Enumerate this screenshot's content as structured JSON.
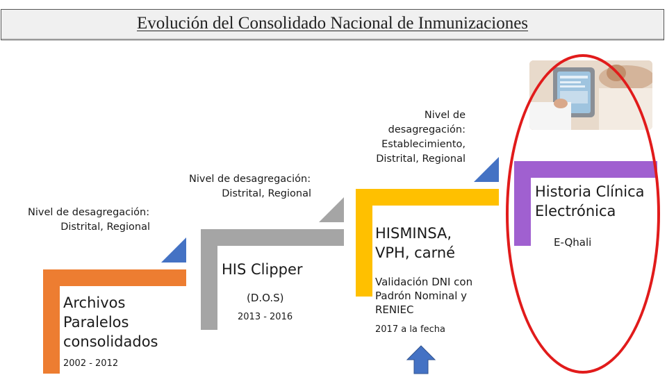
{
  "title": "Evolución del Consolidado Nacional de Inmunizaciones",
  "colors": {
    "orange": "#ed7d31",
    "gray": "#a5a5a5",
    "yellow": "#ffc000",
    "purple": "#a060d0",
    "blue_arrow": "#4472c4",
    "red_oval": "#e11b1b"
  },
  "labels": {
    "level1_line1": "Nivel de desagregación:",
    "level1_line2": "Distrital, Regional",
    "level2_line1": "Nivel de desagregación:",
    "level2_line2": "Distrital, Regional",
    "level3_line1": "Nivel de",
    "level3_line2": "desagregación:",
    "level3_line3": "Establecimiento,",
    "level3_line4": "Distrital, Regional"
  },
  "steps": [
    {
      "title_lines": [
        "Archivos",
        "Paralelos",
        "consolidados"
      ],
      "years": "2002 - 2012"
    },
    {
      "title": "HIS Clipper",
      "subtitle": "(D.O.S)",
      "years": "2013 - 2016"
    },
    {
      "title_lines": [
        "HISMINSA,",
        "VPH, carné"
      ],
      "detail_lines": [
        "Validación DNI con",
        "Padrón Nominal y",
        "RENIEC"
      ],
      "years": "2017 a la fecha"
    },
    {
      "title_lines": [
        "Historia Clínica",
        "Electrónica"
      ],
      "subtitle": "E-Qhali"
    }
  ],
  "icons": {
    "up_arrow": "up-arrow-icon",
    "photo": "doctor-tablet-photo"
  }
}
